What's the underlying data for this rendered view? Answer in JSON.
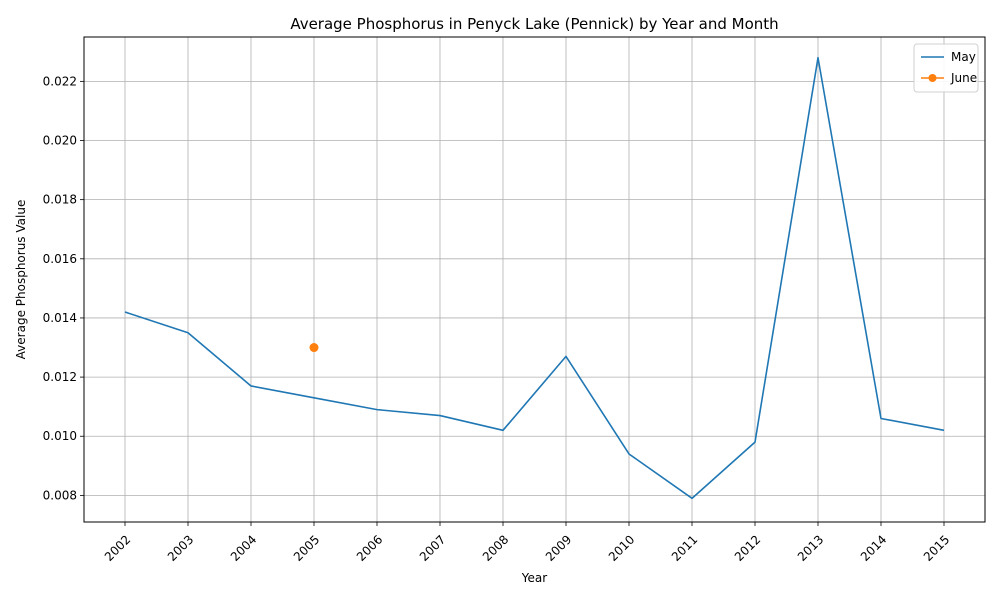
{
  "chart_data": {
    "type": "line",
    "title": "Average Phosphorus in Penyck Lake (Pennick) by Year and Month",
    "xlabel": "Year",
    "ylabel": "Average Phosphorus Value",
    "categories": [
      "2002",
      "2003",
      "2004",
      "2005",
      "2006",
      "2007",
      "2008",
      "2009",
      "2010",
      "2011",
      "2012",
      "2013",
      "2014",
      "2015"
    ],
    "x_ticks": [
      "2002",
      "2003",
      "2004",
      "2005",
      "2006",
      "2007",
      "2008",
      "2009",
      "2010",
      "2011",
      "2012",
      "2013",
      "2014",
      "2015"
    ],
    "y_ticks": [
      "0.008",
      "0.010",
      "0.012",
      "0.014",
      "0.016",
      "0.018",
      "0.020",
      "0.022"
    ],
    "ylim": [
      0.0071,
      0.0235
    ],
    "grid": true,
    "legend_position": "top-right",
    "series": [
      {
        "name": "May",
        "color": "#1f77b4",
        "marker": false,
        "values": [
          0.0142,
          0.0135,
          0.0117,
          0.0113,
          0.0109,
          0.0107,
          0.0102,
          0.0127,
          0.0094,
          0.0079,
          0.0098,
          0.0228,
          0.0106,
          0.0102
        ]
      },
      {
        "name": "June",
        "color": "#ff7f0e",
        "marker": true,
        "values": [
          null,
          null,
          null,
          0.013,
          null,
          null,
          null,
          null,
          null,
          null,
          null,
          null,
          null,
          null
        ]
      }
    ]
  }
}
